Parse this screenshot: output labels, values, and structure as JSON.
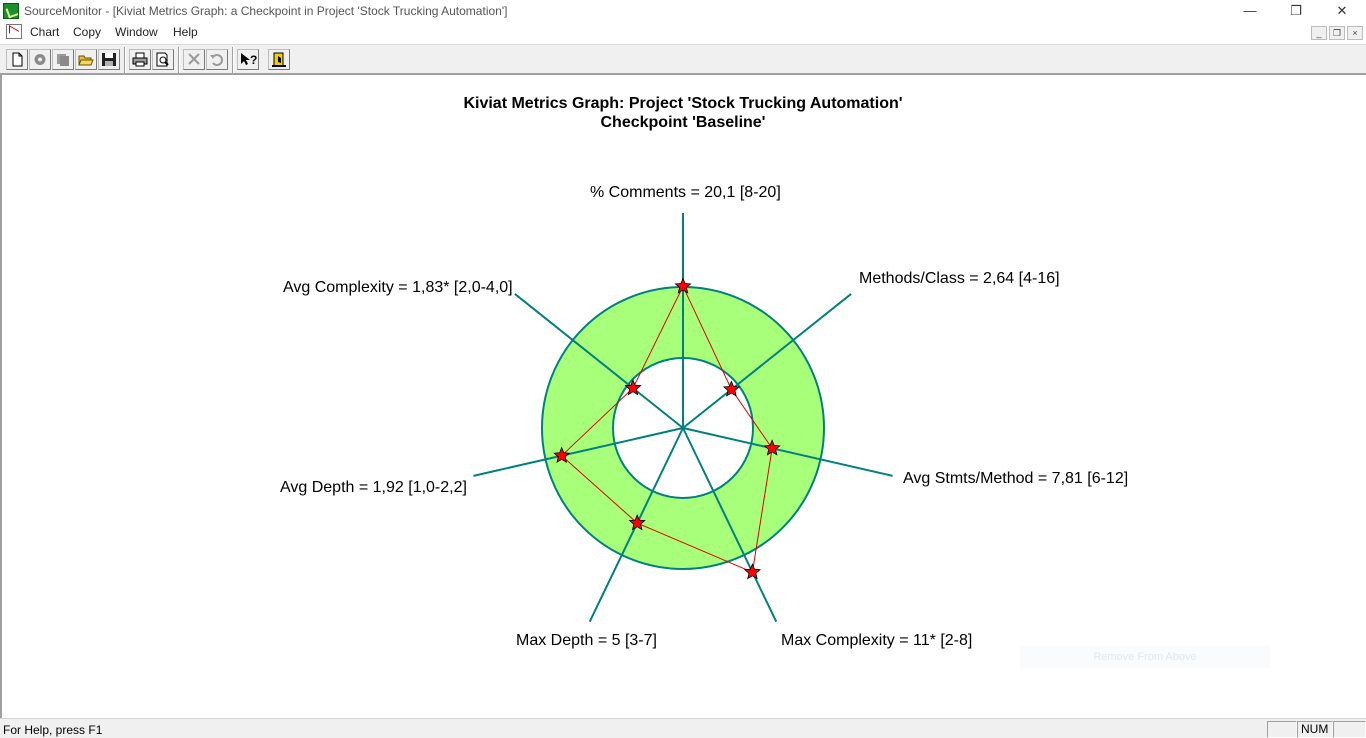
{
  "window": {
    "title": "SourceMonitor - [Kiviat Metrics Graph: a Checkpoint in Project 'Stock Trucking Automation']",
    "controls": {
      "minimize": "—",
      "maximize": "❐",
      "close": "✕"
    }
  },
  "menu": {
    "items": [
      "Chart",
      "Copy",
      "Window",
      "Help"
    ],
    "mdi_controls": {
      "minimize": "_",
      "restore": "❐",
      "close": "×"
    }
  },
  "toolbar": {
    "buttons": [
      {
        "icon": "new-document-icon"
      },
      {
        "icon": "gear-icon"
      },
      {
        "icon": "stack-icon"
      },
      {
        "icon": "open-folder-icon"
      },
      {
        "icon": "save-disk-icon"
      },
      {
        "icon": "print-icon"
      },
      {
        "icon": "print-preview-icon"
      },
      {
        "icon": "delete-x-icon"
      },
      {
        "icon": "undo-icon"
      },
      {
        "icon": "context-help-icon"
      },
      {
        "icon": "exit-door-icon"
      }
    ]
  },
  "chart": {
    "title_line1": "Kiviat Metrics Graph: Project 'Stock Trucking Automation'",
    "title_line2": "Checkpoint 'Baseline'",
    "axes": [
      {
        "label": "% Comments = 20,1 [8-20]"
      },
      {
        "label": "Methods/Class = 2,64 [4-16]"
      },
      {
        "label": "Avg Stmts/Method = 7,81 [6-12]"
      },
      {
        "label": "Max Complexity = 11* [2-8]"
      },
      {
        "label": "Max Depth = 5 [3-7]"
      },
      {
        "label": "Avg Depth = 1,92 [1,0-2,2]"
      },
      {
        "label": "Avg Complexity = 1,83* [2,0-4,0]"
      }
    ],
    "colors": {
      "band_fill": "#a8ff7a",
      "axis": "#008080",
      "polygon": "#e00000",
      "marker": "#ff0000"
    }
  },
  "chart_data": {
    "type": "radar",
    "title": "Kiviat Metrics Graph: Project 'Stock Trucking Automation' Checkpoint 'Baseline'",
    "axes": [
      "% Comments",
      "Methods/Class",
      "Avg Stmts/Method",
      "Max Complexity",
      "Max Depth",
      "Avg Depth",
      "Avg Complexity"
    ],
    "values": [
      20.1,
      2.64,
      7.81,
      11,
      5,
      1.92,
      1.83
    ],
    "normal_range_min": [
      8,
      4,
      6,
      2,
      3,
      1.0,
      2.0
    ],
    "normal_range_max": [
      20,
      16,
      12,
      8,
      7,
      2.2,
      4.0
    ],
    "out_of_range": [
      "Max Complexity",
      "Avg Complexity"
    ]
  },
  "faint_button": {
    "label": "Remove From Above"
  },
  "status": {
    "help_text": "For Help, press F1",
    "num_indicator": "NUM"
  }
}
